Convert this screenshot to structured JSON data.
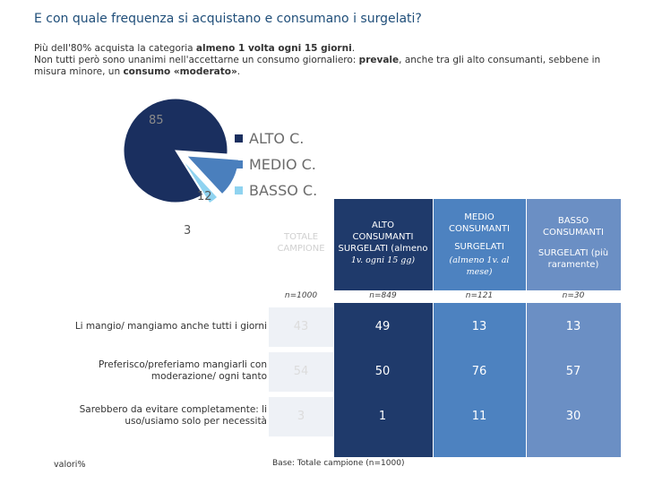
{
  "title": "E con quale frequenza si acquistano e consumano i surgelati?",
  "subtitle": {
    "l1_a": "Più dell'80% acquista la categoria ",
    "l1_b": "almeno 1 volta ogni 15 giorni",
    "l1_c": ".",
    "l2_a": "Non tutti però sono unanimi nell'accettarne un consumo giornaliero: ",
    "l2_b": "prevale",
    "l2_c": ", anche tra gli alto consumanti, sebbene in misura minore, un ",
    "l2_d": "consumo «moderato»",
    "l2_e": "."
  },
  "chart_data": [
    {
      "type": "pie",
      "slices": [
        {
          "name": "ALTO C.",
          "value": 85,
          "color": "#1a2f5f"
        },
        {
          "name": "MEDIO C.",
          "value": 12,
          "color": "#4a7fbd"
        },
        {
          "name": "BASSO C.",
          "value": 3,
          "color": "#8fd3f0"
        }
      ],
      "legend": "right"
    },
    {
      "type": "table",
      "columns": [
        {
          "h1": "TOTALE",
          "h2": "CAMPIONE",
          "h3": "",
          "h4": "",
          "n": "n=1000"
        },
        {
          "h1": "ALTO",
          "h2": "CONSUMANTI",
          "h3": "SURGELATI (almeno",
          "h4": "1v. ogni 15 gg)",
          "n": "n=849"
        },
        {
          "h1": "MEDIO",
          "h2": "CONSUMANTI",
          "h3": "SURGELATI",
          "h4": "(almeno 1v. al mese)",
          "n": "n=121"
        },
        {
          "h1": "BASSO",
          "h2": "CONSUMANTI",
          "h3": "SURGELATI (più",
          "h4": "raramente)",
          "n": "n=30"
        }
      ],
      "rows": [
        {
          "label1": "Li mangio/ mangiamo anche tutti i giorni",
          "label2": "",
          "values": [
            43,
            49,
            13,
            13
          ]
        },
        {
          "label1": "Preferisco/preferiamo mangiarli con",
          "label2": "moderazione/ ogni tanto",
          "values": [
            54,
            50,
            76,
            57
          ]
        },
        {
          "label1": "Sarebbero da evitare completamente: li",
          "label2": "uso/usiamo solo per necessità",
          "values": [
            3,
            1,
            11,
            30
          ]
        }
      ]
    }
  ],
  "footer": {
    "valori": "valori%",
    "base": "Base: Totale campione (n=1000)"
  }
}
